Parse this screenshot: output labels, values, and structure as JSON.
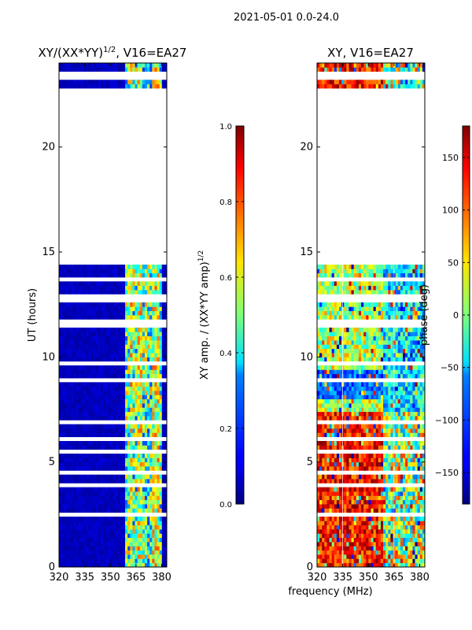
{
  "suptitle": "2021-05-01 0.0-24.0",
  "colors": {
    "background": "#ffffff",
    "masked": "#ffffff",
    "axis": "#000000",
    "low_fill": "#00008f",
    "gridline": "#ffffff"
  },
  "chart_data": [
    {
      "type": "heatmap",
      "title": "XY/(XX*YY)",
      "title_power": "1/2",
      "title_suffix": ", V16=EA27",
      "ylabel": "UT (hours)",
      "xlim": [
        320,
        383
      ],
      "ylim": [
        0,
        24
      ],
      "x_ticks": [
        {
          "v": 320,
          "label": "320"
        },
        {
          "v": 335,
          "label": "335"
        },
        {
          "v": 350,
          "label": "350"
        },
        {
          "v": 365,
          "label": "365"
        },
        {
          "v": 380,
          "label": "380"
        }
      ],
      "y_ticks": [
        {
          "v": 0,
          "label": "0"
        },
        {
          "v": 5,
          "label": "5"
        },
        {
          "v": 10,
          "label": "10"
        },
        {
          "v": 15,
          "label": "15"
        },
        {
          "v": 20,
          "label": "20"
        }
      ],
      "data_gaps_hours": [
        [
          14.45,
          22.75
        ]
      ],
      "colormap": "jet",
      "colorbar": {
        "range": [
          0.0,
          1.0
        ],
        "label": "XY amp. / (XX*YY amp)",
        "label_power": "1/2",
        "ticks": [
          {
            "v": 0.0,
            "label": "0.0"
          },
          {
            "v": 0.2,
            "label": "0.2"
          },
          {
            "v": 0.4,
            "label": "0.4"
          },
          {
            "v": 0.6,
            "label": "0.6"
          },
          {
            "v": 0.8,
            "label": "0.8"
          },
          {
            "v": 1.0,
            "label": "1.0"
          }
        ]
      }
    },
    {
      "type": "heatmap",
      "title": "XY, V16=EA27",
      "xlabel": "frequency (MHz)",
      "xlim": [
        320,
        383
      ],
      "ylim": [
        0,
        24
      ],
      "x_ticks": [
        {
          "v": 320,
          "label": "320"
        },
        {
          "v": 335,
          "label": "335"
        },
        {
          "v": 350,
          "label": "350"
        },
        {
          "v": 365,
          "label": "365"
        },
        {
          "v": 380,
          "label": "380"
        }
      ],
      "y_ticks": [
        {
          "v": 0,
          "label": "0"
        },
        {
          "v": 5,
          "label": "5"
        },
        {
          "v": 10,
          "label": "10"
        },
        {
          "v": 15,
          "label": "15"
        },
        {
          "v": 20,
          "label": "20"
        }
      ],
      "data_gaps_hours": [
        [
          14.45,
          22.75
        ]
      ],
      "colormap": "jet",
      "colorbar": {
        "range": [
          -180,
          180
        ],
        "label": "phase (deg)",
        "ticks": [
          {
            "v": -150,
            "label": "−150"
          },
          {
            "v": -100,
            "label": "−100"
          },
          {
            "v": -50,
            "label": "−50"
          },
          {
            "v": 0,
            "label": "0"
          },
          {
            "v": 50,
            "label": "50"
          },
          {
            "v": 100,
            "label": "100"
          },
          {
            "v": 150,
            "label": "150"
          }
        ]
      }
    }
  ]
}
